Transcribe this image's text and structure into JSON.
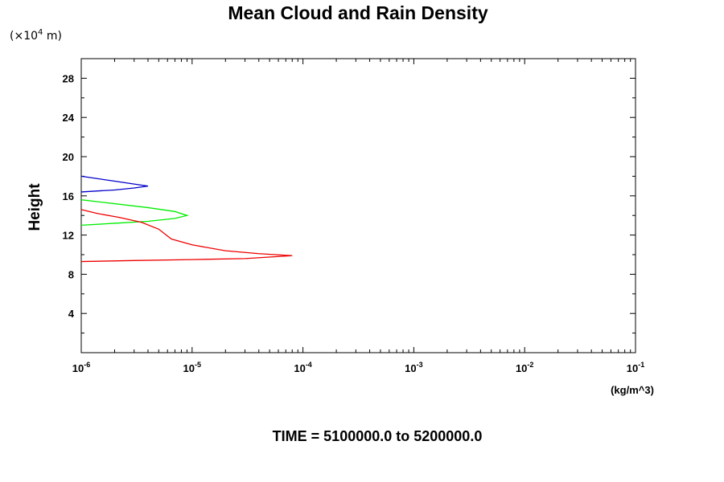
{
  "chart_data": {
    "type": "line",
    "title": "Mean Cloud and Rain Density",
    "y_unit_prefix": "(×10",
    "y_unit_exp": "4",
    "y_unit_suffix": " m)",
    "ylabel": "Height",
    "xlabel_unit": "(kg/m^3)",
    "footer": "TIME = 5100000.0 to 5200000.0",
    "x_scale": "log",
    "xlim": [
      1e-06,
      0.1
    ],
    "ylim": [
      0,
      30
    ],
    "x_tick_exponents": [
      "-6",
      "-5",
      "-4",
      "-3",
      "-2",
      "-1"
    ],
    "x_tick_base": "10",
    "y_ticks": [
      "4",
      "8",
      "12",
      "16",
      "20",
      "24",
      "28"
    ],
    "grid": false,
    "series": [
      {
        "color": "#0000cc",
        "points": [
          [
            1e-06,
            18.0
          ],
          [
            2e-06,
            17.5
          ],
          [
            3e-06,
            17.2
          ],
          [
            4e-06,
            17.0
          ],
          [
            3e-06,
            16.8
          ],
          [
            2e-06,
            16.6
          ],
          [
            1e-06,
            16.4
          ]
        ]
      },
      {
        "color": "#00ee00",
        "points": [
          [
            1e-06,
            15.6
          ],
          [
            2e-06,
            15.2
          ],
          [
            4e-06,
            14.8
          ],
          [
            7e-06,
            14.4
          ],
          [
            9e-06,
            14.0
          ],
          [
            7e-06,
            13.7
          ],
          [
            4e-06,
            13.4
          ],
          [
            2e-06,
            13.2
          ],
          [
            1e-06,
            13.0
          ]
        ]
      },
      {
        "color": "#ee0000",
        "points": [
          [
            1e-06,
            14.6
          ],
          [
            1.4e-06,
            14.2
          ],
          [
            2.2e-06,
            13.8
          ],
          [
            3.5e-06,
            13.3
          ],
          [
            5e-06,
            12.6
          ],
          [
            6.5e-06,
            11.6
          ],
          [
            1e-05,
            11.0
          ],
          [
            2e-05,
            10.4
          ],
          [
            4e-05,
            10.1
          ],
          [
            8e-05,
            9.9
          ],
          [
            3e-05,
            9.6
          ],
          [
            1e-05,
            9.5
          ],
          [
            3e-06,
            9.4
          ],
          [
            1e-06,
            9.3
          ]
        ]
      }
    ]
  }
}
